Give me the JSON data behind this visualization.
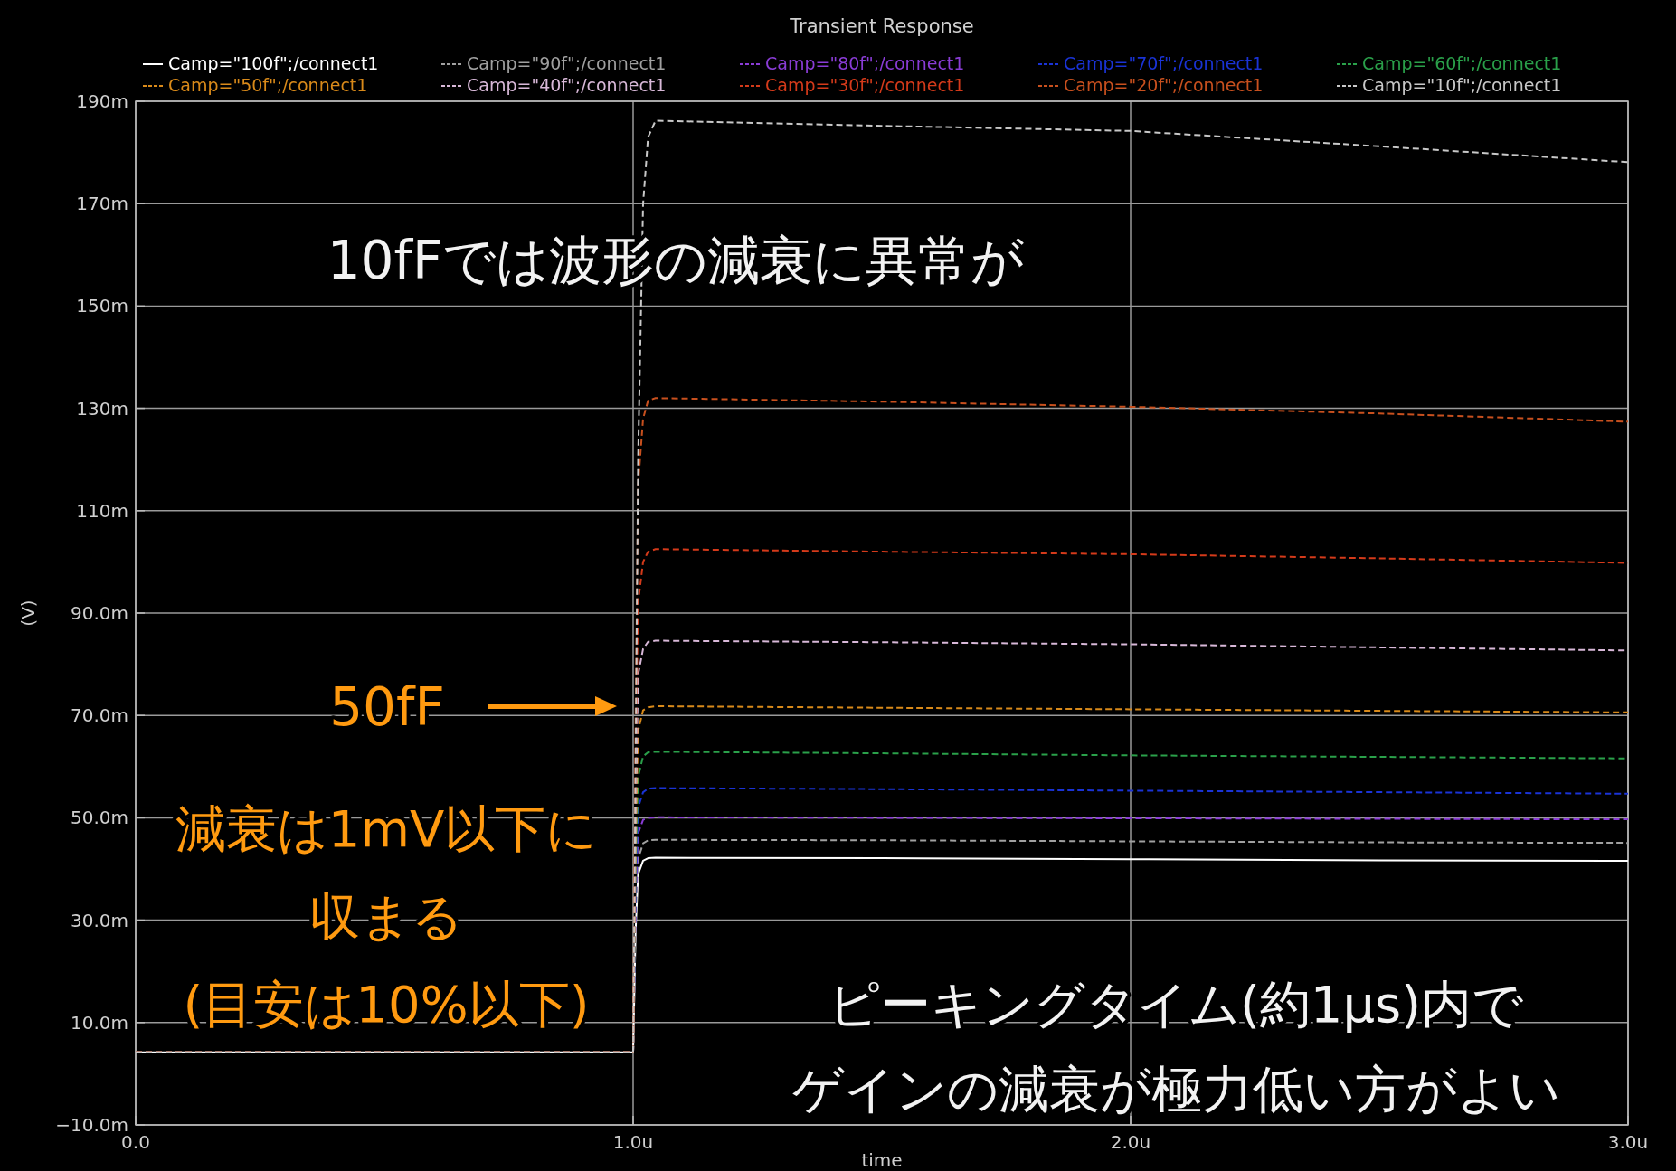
{
  "chart_data": {
    "type": "line",
    "title": "Transient Response",
    "xlabel": "time",
    "ylabel": "(V)",
    "xlim": [
      0,
      3
    ],
    "xticks": [
      {
        "value": 0,
        "label": "0.0"
      },
      {
        "value": 1,
        "label": "1.0u"
      },
      {
        "value": 2,
        "label": "2.0u"
      },
      {
        "value": 3,
        "label": "3.0u"
      }
    ],
    "ylim": [
      -10,
      190
    ],
    "yticks": [
      {
        "value": -10,
        "label": "−10.0m"
      },
      {
        "value": 10,
        "label": "10.0m"
      },
      {
        "value": 30,
        "label": "30.0m"
      },
      {
        "value": 50,
        "label": "50.0m"
      },
      {
        "value": 70,
        "label": "70.0m"
      },
      {
        "value": 90,
        "label": "90.0m"
      },
      {
        "value": 110,
        "label": "110m"
      },
      {
        "value": 130,
        "label": "130m"
      },
      {
        "value": 150,
        "label": "150m"
      },
      {
        "value": 170,
        "label": "170m"
      },
      {
        "value": 190,
        "label": "190m"
      }
    ],
    "grid": true,
    "legend": "top",
    "line_style": "dashed",
    "x": [
      0,
      1.0,
      1.005,
      1.01,
      1.02,
      1.03,
      1.045,
      1.5,
      2.0,
      2.5,
      3.0
    ],
    "series": [
      {
        "name": "Camp=\"100f\";/connect1",
        "color": "#ffffff",
        "line_style": "solid",
        "values": [
          4.2,
          4.2,
          28,
          39,
          41.6,
          42.1,
          42.2,
          42.1,
          41.9,
          41.7,
          41.6
        ]
      },
      {
        "name": "Camp=\"90f\";/connect1",
        "color": "#a0a0a0",
        "values": [
          4.2,
          4.2,
          30,
          42,
          45,
          45.6,
          45.7,
          45.6,
          45.4,
          45.2,
          45.1
        ]
      },
      {
        "name": "Camp=\"80f\";/connect1",
        "color": "#8a3cd6",
        "values": [
          4.2,
          4.2,
          33,
          47,
          49.6,
          50.0,
          50.1,
          50.0,
          49.9,
          49.8,
          49.7
        ]
      },
      {
        "name": "Camp=\"70f\";/connect1",
        "color": "#1a33d6",
        "values": [
          4.2,
          4.2,
          36,
          52,
          55,
          55.7,
          55.8,
          55.6,
          55.3,
          55.0,
          54.7
        ]
      },
      {
        "name": "Camp=\"60f\";/connect1",
        "color": "#2aa04a",
        "values": [
          4.2,
          4.2,
          40,
          58,
          62,
          62.8,
          62.9,
          62.6,
          62.2,
          61.9,
          61.6
        ]
      },
      {
        "name": "Camp=\"50f\";/connect1",
        "color": "#d98a1a",
        "values": [
          4.2,
          4.2,
          45,
          67,
          71,
          71.6,
          71.8,
          71.5,
          71.2,
          70.9,
          70.6
        ]
      },
      {
        "name": "Camp=\"40f\";/connect1",
        "color": "#d8b8d8",
        "values": [
          4.2,
          4.2,
          50,
          78,
          83,
          84.4,
          84.6,
          84.3,
          83.9,
          83.3,
          82.7
        ]
      },
      {
        "name": "Camp=\"30f\";/connect1",
        "color": "#d43a1a",
        "values": [
          4.2,
          4.2,
          60,
          92,
          100,
          102,
          102.5,
          102.0,
          101.5,
          100.7,
          99.8
        ]
      },
      {
        "name": "Camp=\"20f\";/connect1",
        "color": "#c8501e",
        "values": [
          4.2,
          4.2,
          70,
          115,
          128,
          131.5,
          132.0,
          131.3,
          130.3,
          129.0,
          127.4
        ]
      },
      {
        "name": "Camp=\"10f\";/connect1",
        "color": "#c8c8c8",
        "values": [
          4.2,
          4.2,
          60,
          120,
          170,
          183,
          186.2,
          185.2,
          184.2,
          181.2,
          178.1
        ]
      }
    ],
    "annotations": [
      "10fFでは波形の減衰に異常が",
      "50fF",
      "減衰は1mV以下に収まる(目安は10%以下)",
      "ピーキングタイム(約1μs)内でゲインの減衰が極力低い方がよい"
    ]
  }
}
